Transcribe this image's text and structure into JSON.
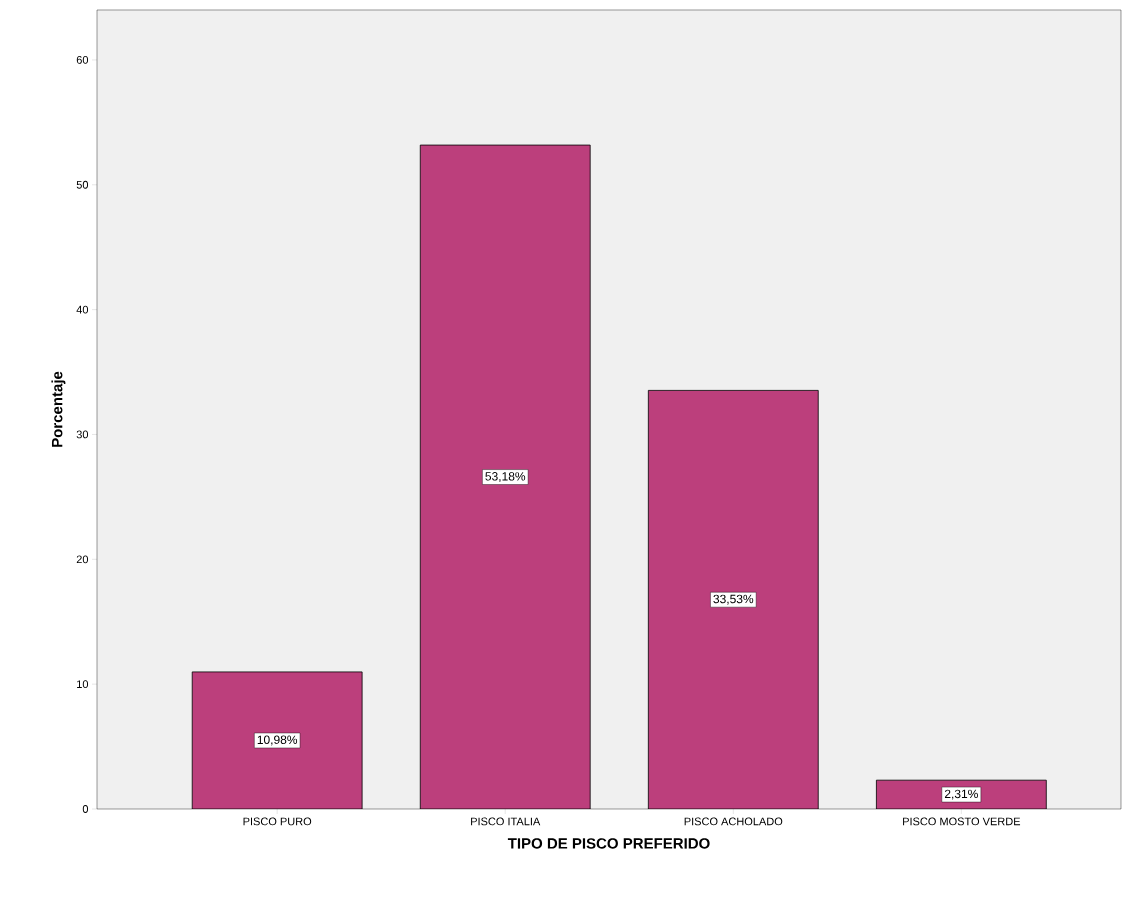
{
  "chart_data": {
    "type": "bar",
    "xlabel": "TIPO DE PISCO PREFERIDO",
    "ylabel": "Porcentaje",
    "categories": [
      "PISCO PURO",
      "PISCO ITALIA",
      "PISCO ACHOLADO",
      "PISCO MOSTO VERDE"
    ],
    "values": [
      10.98,
      53.18,
      33.53,
      2.31
    ],
    "value_labels": [
      "10,98%",
      "53,18%",
      "33,53%",
      "2,31%"
    ],
    "color": "#bc3f7c",
    "ylim": [
      0,
      64
    ],
    "yticks": [
      0,
      10,
      20,
      30,
      40,
      50,
      60
    ]
  }
}
